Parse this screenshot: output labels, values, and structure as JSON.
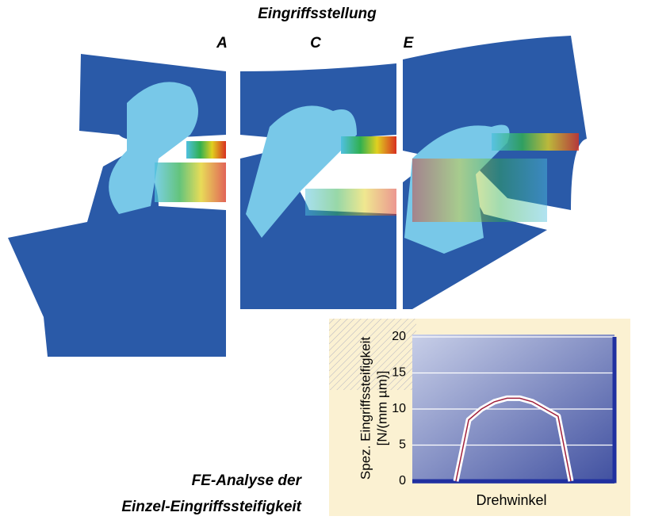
{
  "figure_title": "Eingriffsstellung",
  "positions": [
    "A",
    "C",
    "E"
  ],
  "caption": [
    "FE-Analyse der",
    "Einzel-Eingriffssteifigkeit"
  ],
  "chart_data": {
    "type": "line",
    "y_label": [
      "Spez. Eingriffssteifigkeit",
      "[N/(mm µm)]"
    ],
    "x_label": "Drehwinkel",
    "categories": [
      null,
      null,
      null,
      null,
      null,
      null,
      null,
      null,
      null,
      null
    ],
    "series": [
      {
        "color": "#a0203c",
        "values": [
          0,
          8.5,
          10,
          11,
          11.5,
          11.5,
          11,
          10,
          9,
          0
        ]
      }
    ],
    "ylim": [
      0,
      20
    ],
    "yticks": [
      0,
      5,
      10,
      15,
      20
    ],
    "grid": true
  }
}
